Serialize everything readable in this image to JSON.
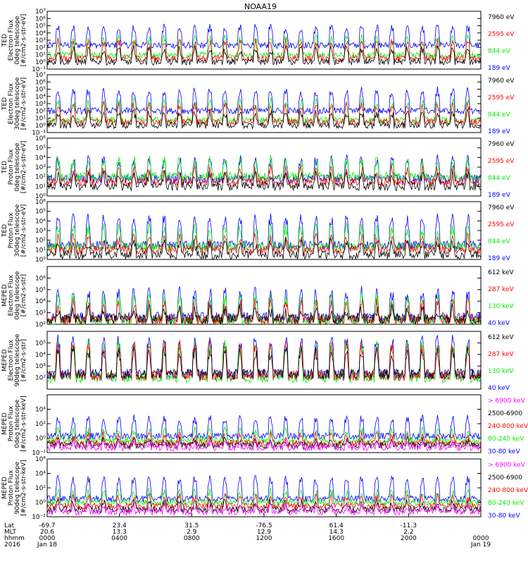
{
  "title": "NOAA19",
  "colors": {
    "black": "#000000",
    "red": "#ff0000",
    "green": "#00ee00",
    "blue": "#0000ff",
    "magenta": "#ff00ff"
  },
  "chart_data": [
    {
      "type": "line",
      "id": "ted-e-0",
      "ylabel": [
        "TED",
        "Electron Flux",
        "0deg telescope",
        "[#/cm2-s-str-eV]"
      ],
      "yscale": "log",
      "ylim": [
        0.1,
        10000000
      ],
      "yticks": [
        {
          "v": 0.1,
          "t": "10⁻¹"
        },
        {
          "v": 1,
          "t": "10⁰"
        },
        {
          "v": 10,
          "t": "10¹"
        },
        {
          "v": 100,
          "t": "10²"
        },
        {
          "v": 1000,
          "t": "10³"
        },
        {
          "v": 10000,
          "t": "10⁴"
        },
        {
          "v": 100000,
          "t": "10⁵"
        },
        {
          "v": 1000000,
          "t": "10⁶"
        },
        {
          "v": 10000000,
          "t": "10⁷"
        }
      ],
      "series": [
        {
          "name": "7960 eV",
          "color": "#000000",
          "base": 1,
          "spike": 100
        },
        {
          "name": "2595 eV",
          "color": "#ff0000",
          "base": 3,
          "spike": 1000
        },
        {
          "name": "844 eV",
          "color": "#00ee00",
          "base": 8,
          "spike": 3000
        },
        {
          "name": "189 eV",
          "color": "#0000ff",
          "base": 200,
          "spike": 100000
        }
      ]
    },
    {
      "type": "line",
      "id": "ted-e-30",
      "ylabel": [
        "TED",
        "Electron Flux",
        "30deg telescope",
        "[#/cm2-s-str-eV]"
      ],
      "yscale": "log",
      "ylim": [
        0.1,
        10000000
      ],
      "yticks": [
        {
          "v": 0.1,
          "t": "10⁻¹"
        },
        {
          "v": 1,
          "t": "10⁰"
        },
        {
          "v": 10,
          "t": "10¹"
        },
        {
          "v": 100,
          "t": "10²"
        },
        {
          "v": 1000,
          "t": "10³"
        },
        {
          "v": 10000,
          "t": "10⁴"
        },
        {
          "v": 100000,
          "t": "10⁵"
        },
        {
          "v": 1000000,
          "t": "10⁶"
        },
        {
          "v": 10000000,
          "t": "10⁷"
        }
      ],
      "series": [
        {
          "name": "7960 eV",
          "color": "#000000",
          "base": 1,
          "spike": 100
        },
        {
          "name": "2595 eV",
          "color": "#ff0000",
          "base": 3,
          "spike": 1000
        },
        {
          "name": "844 eV",
          "color": "#00ee00",
          "base": 5,
          "spike": 3000
        },
        {
          "name": "189 eV",
          "color": "#0000ff",
          "base": 100,
          "spike": 100000
        }
      ]
    },
    {
      "type": "line",
      "id": "ted-p-0",
      "ylabel": [
        "TED",
        "Proton Flux",
        "0deg telescope",
        "[#/cm2-s-str-eV]"
      ],
      "yscale": "log",
      "ylim": [
        1,
        1000000
      ],
      "yticks": [
        {
          "v": 1,
          "t": "10⁰"
        },
        {
          "v": 10,
          "t": "10¹"
        },
        {
          "v": 100,
          "t": "10²"
        },
        {
          "v": 1000,
          "t": "10³"
        },
        {
          "v": 10000,
          "t": "10⁴"
        },
        {
          "v": 100000,
          "t": "10⁵"
        },
        {
          "v": 1000000,
          "t": "10⁶"
        }
      ],
      "series": [
        {
          "name": "7960 eV",
          "color": "#000000",
          "base": 10,
          "spike": 300
        },
        {
          "name": "2595 eV",
          "color": "#ff0000",
          "base": 30,
          "spike": 1000
        },
        {
          "name": "844 eV",
          "color": "#00ee00",
          "base": 100,
          "spike": 10000
        },
        {
          "name": "189 eV",
          "color": "#0000ff",
          "base": 60,
          "spike": 10000
        }
      ]
    },
    {
      "type": "line",
      "id": "ted-p-30",
      "ylabel": [
        "TED",
        "Proton Flux",
        "30deg telescope",
        "[#/cm2-s-str-eV]"
      ],
      "yscale": "log",
      "ylim": [
        1,
        1000000
      ],
      "yticks": [
        {
          "v": 1,
          "t": "10⁰"
        },
        {
          "v": 10,
          "t": "10¹"
        },
        {
          "v": 100,
          "t": "10²"
        },
        {
          "v": 1000,
          "t": "10³"
        },
        {
          "v": 10000,
          "t": "10⁴"
        },
        {
          "v": 100000,
          "t": "10⁵"
        },
        {
          "v": 1000000,
          "t": "10⁶"
        }
      ],
      "series": [
        {
          "name": "7960 eV",
          "color": "#000000",
          "base": 3,
          "spike": 100
        },
        {
          "name": "2595 eV",
          "color": "#ff0000",
          "base": 10,
          "spike": 300
        },
        {
          "name": "844 eV",
          "color": "#00ee00",
          "base": 20,
          "spike": 3000
        },
        {
          "name": "189 eV",
          "color": "#0000ff",
          "base": 30,
          "spike": 30000
        }
      ]
    },
    {
      "type": "line",
      "id": "meped-e-0",
      "ylabel": [
        "MEPED",
        "Electron Flux",
        "0deg telescope",
        "[#/cm2-s-str]"
      ],
      "yscale": "log",
      "ylim": [
        100,
        10000000
      ],
      "yticks": [
        {
          "v": 100,
          "t": "10²"
        },
        {
          "v": 1000,
          "t": "10³"
        },
        {
          "v": 10000,
          "t": "10⁴"
        },
        {
          "v": 100000,
          "t": "10⁵"
        },
        {
          "v": 1000000,
          "t": "10⁶"
        }
      ],
      "series": [
        {
          "name": "612 keV",
          "color": "#000000",
          "base": 300,
          "spike": 3000
        },
        {
          "name": "287 keV",
          "color": "#ff0000",
          "base": 250,
          "spike": 10000
        },
        {
          "name": "130 keV",
          "color": "#00ee00",
          "base": 200,
          "spike": 30000
        },
        {
          "name": "40 keV",
          "color": "#0000ff",
          "base": 400,
          "spike": 100000
        }
      ]
    },
    {
      "type": "line",
      "id": "meped-e-90",
      "ylabel": [
        "MEPED",
        "Electron Flux",
        "90deg telescope",
        "[#/cm2-s-str]"
      ],
      "yscale": "log",
      "ylim": [
        10,
        1000000
      ],
      "yticks": [
        {
          "v": 100,
          "t": "10²"
        },
        {
          "v": 1000,
          "t": "10³"
        },
        {
          "v": 10000,
          "t": "10⁴"
        },
        {
          "v": 100000,
          "t": "10⁵"
        }
      ],
      "series": [
        {
          "name": "612 keV",
          "color": "#000000",
          "base": 200,
          "spike": 30000
        },
        {
          "name": "287 keV",
          "color": "#ff0000",
          "base": 150,
          "spike": 100000
        },
        {
          "name": "130 keV",
          "color": "#00ee00",
          "base": 100,
          "spike": 100000
        },
        {
          "name": "40 keV",
          "color": "#0000ff",
          "base": 200,
          "spike": 300000
        }
      ]
    },
    {
      "type": "line",
      "id": "meped-p-0",
      "ylabel": [
        "MEPED",
        "Proton Flux",
        "0deg telescope",
        "[#/cm2-s-str-keV]"
      ],
      "yscale": "log",
      "ylim": [
        0.01,
        1000000
      ],
      "yticks": [
        {
          "v": 0.01,
          "t": "10⁻²"
        },
        {
          "v": 1,
          "t": "10⁰"
        },
        {
          "v": 100,
          "t": "10²"
        },
        {
          "v": 10000,
          "t": "10⁴"
        }
      ],
      "series": [
        {
          "name": "> 6900 keV",
          "color": "#ff00ff",
          "base": 0.05,
          "spike": 0.5
        },
        {
          "name": "2500-6900",
          "color": "#000000",
          "base": 0.1,
          "spike": 1
        },
        {
          "name": "240-800 keV",
          "color": "#ff0000",
          "base": 0.2,
          "spike": 5
        },
        {
          "name": "80-240 keV",
          "color": "#00ee00",
          "base": 0.5,
          "spike": 20
        },
        {
          "name": "30-80 keV",
          "color": "#0000ff",
          "base": 2,
          "spike": 1000
        }
      ]
    },
    {
      "type": "line",
      "id": "meped-p-90",
      "ylabel": [
        "MEPED",
        "Proton Flux",
        "90deg telescope",
        "[#/cm2-s-str-keV]"
      ],
      "yscale": "log",
      "ylim": [
        0.01,
        1000000
      ],
      "yticks": [
        {
          "v": 0.01,
          "t": "10⁻²"
        },
        {
          "v": 1,
          "t": "10⁰"
        },
        {
          "v": 100,
          "t": "10²"
        },
        {
          "v": 10000,
          "t": "10⁴"
        },
        {
          "v": 1000000,
          "t": "10⁶"
        }
      ],
      "series": [
        {
          "name": "> 6900 keV",
          "color": "#ff00ff",
          "base": 0.05,
          "spike": 0.5
        },
        {
          "name": "2500-6900",
          "color": "#000000",
          "base": 0.1,
          "spike": 2
        },
        {
          "name": "240-800 keV",
          "color": "#ff0000",
          "base": 0.3,
          "spike": 10
        },
        {
          "name": "80-240 keV",
          "color": "#00ee00",
          "base": 1,
          "spike": 50
        },
        {
          "name": "30-80 keV",
          "color": "#0000ff",
          "base": 3,
          "spike": 3000
        }
      ]
    }
  ],
  "xaxis": {
    "row_labels": [
      "Lat",
      "MLT",
      "hhmm",
      "2016"
    ],
    "ticks": [
      {
        "hour": 0,
        "lat": "-69.7",
        "mlt": "20.6",
        "hhmm": "0000",
        "date": "Jan 18"
      },
      {
        "hour": 4,
        "lat": "23.4",
        "mlt": "13.3",
        "hhmm": "0400",
        "date": ""
      },
      {
        "hour": 8,
        "lat": "31.5",
        "mlt": "2.9",
        "hhmm": "0800",
        "date": ""
      },
      {
        "hour": 12,
        "lat": "-76.5",
        "mlt": "12.9",
        "hhmm": "1200",
        "date": ""
      },
      {
        "hour": 16,
        "lat": "61.4",
        "mlt": "14.3",
        "hhmm": "1600",
        "date": ""
      },
      {
        "hour": 20,
        "lat": "-11.3",
        "mlt": "2.2",
        "hhmm": "2000",
        "date": ""
      },
      {
        "hour": 24,
        "lat": "",
        "mlt": "",
        "hhmm": "0000",
        "date": "Jan 19"
      }
    ]
  }
}
